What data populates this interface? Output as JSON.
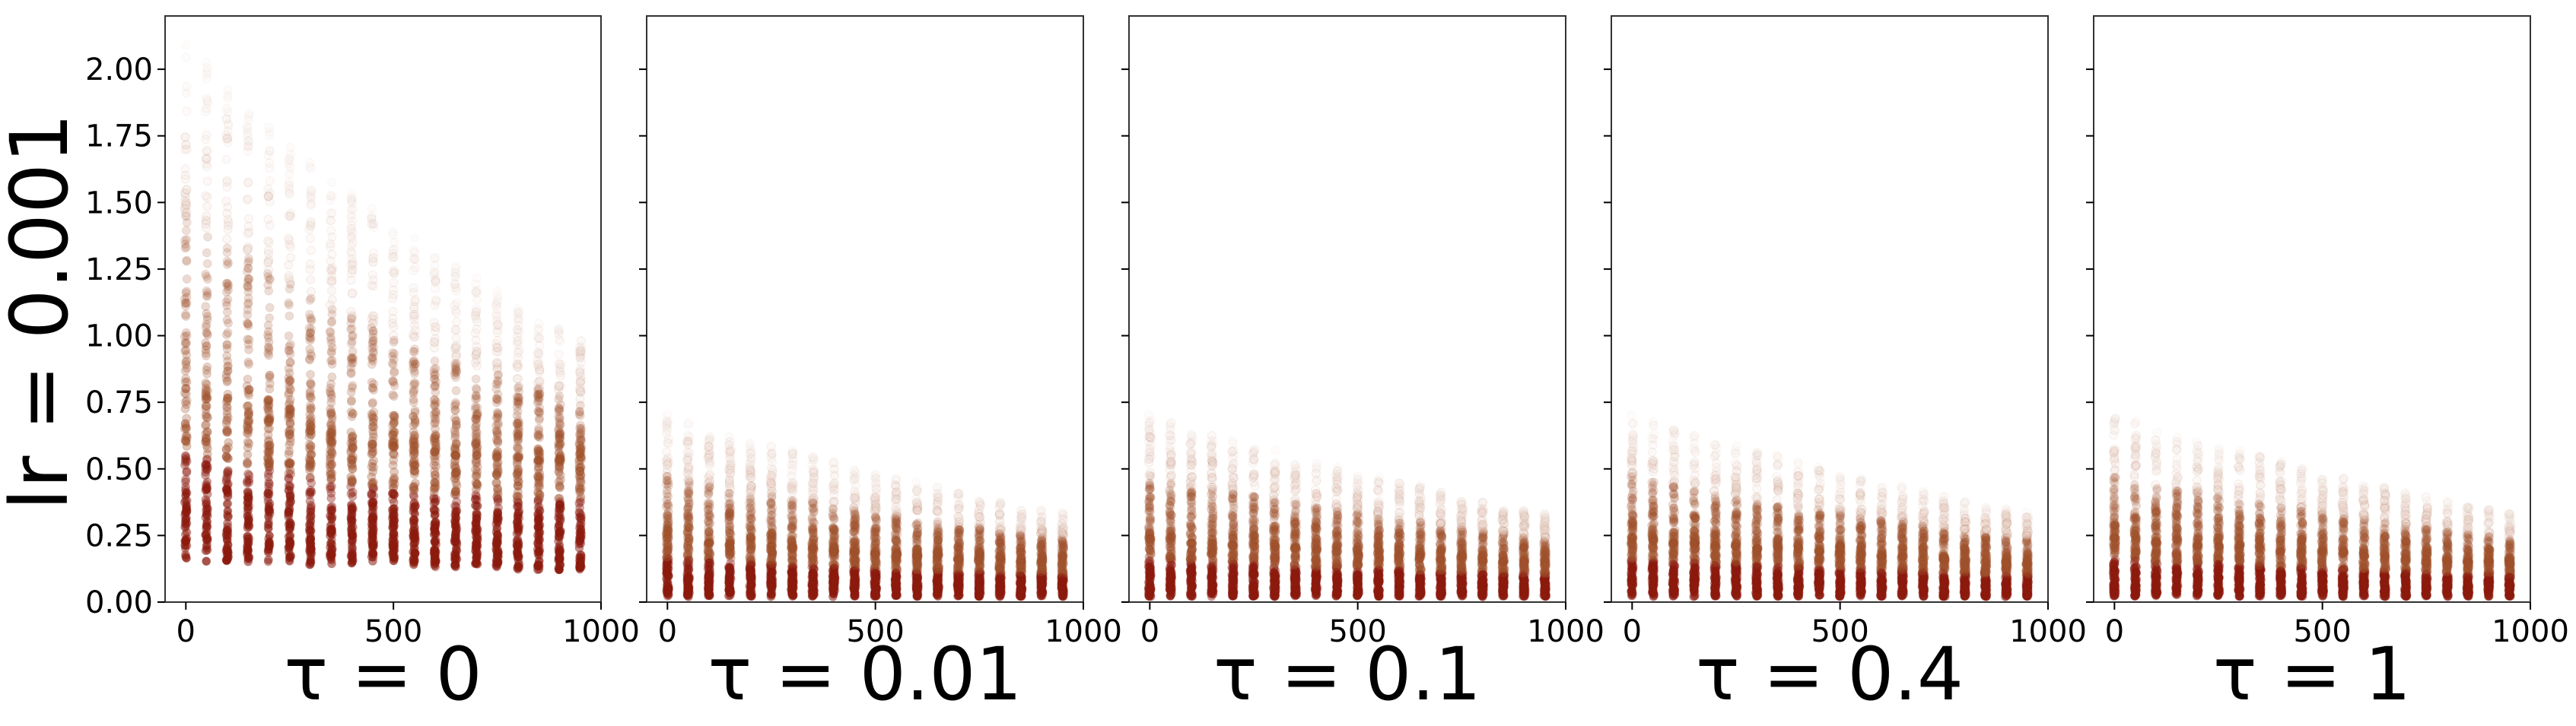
{
  "figure": {
    "row_label": "lr = 0.001"
  },
  "chart_data": [
    {
      "type": "scatter",
      "title": "",
      "xlabel": "τ = 0",
      "ylabel": "lr = 0.001",
      "xlim": [
        -50,
        1000
      ],
      "ylim": [
        0,
        2.2
      ],
      "xticks": [
        0,
        500,
        1000
      ],
      "yticks": [
        0.0,
        0.25,
        0.5,
        0.75,
        1.0,
        1.25,
        1.5,
        1.75,
        2.0
      ],
      "ytick_labels": [
        "0.00",
        "0.25",
        "0.50",
        "0.75",
        "1.00",
        "1.25",
        "1.50",
        "1.75",
        "2.00"
      ],
      "show_ytick_labels": true,
      "grid": false,
      "x": [
        0,
        50,
        100,
        150,
        200,
        250,
        300,
        350,
        400,
        450,
        500,
        550,
        600,
        650,
        700,
        750,
        800,
        850,
        900,
        950
      ],
      "y_min": [
        0.15,
        0.15,
        0.15,
        0.15,
        0.15,
        0.15,
        0.14,
        0.14,
        0.14,
        0.14,
        0.14,
        0.13,
        0.13,
        0.13,
        0.13,
        0.13,
        0.12,
        0.12,
        0.12,
        0.12
      ],
      "y_max": [
        2.1,
        2.04,
        1.96,
        1.89,
        1.81,
        1.74,
        1.67,
        1.6,
        1.54,
        1.48,
        1.42,
        1.37,
        1.32,
        1.27,
        1.22,
        1.17,
        1.12,
        1.08,
        1.04,
        1.0
      ],
      "dense_top": [
        0.8,
        0.76,
        0.73,
        0.7,
        0.68,
        0.66,
        0.64,
        0.62,
        0.6,
        0.59,
        0.58,
        0.57,
        0.56,
        0.55,
        0.55,
        0.54,
        0.54,
        0.53,
        0.53,
        0.52
      ],
      "colors": {
        "dense": "#8b1a0e",
        "mid": "#a0522d",
        "sparse": "#e8cfc3"
      }
    },
    {
      "type": "scatter",
      "title": "",
      "xlabel": "τ = 0.01",
      "ylabel": "",
      "xlim": [
        -50,
        1000
      ],
      "ylim": [
        0,
        2.2
      ],
      "xticks": [
        0,
        500,
        1000
      ],
      "show_ytick_labels": false,
      "grid": false,
      "x": [
        0,
        50,
        100,
        150,
        200,
        250,
        300,
        350,
        400,
        450,
        500,
        550,
        600,
        650,
        700,
        750,
        800,
        850,
        900,
        950
      ],
      "y_min": [
        0.02,
        0.02,
        0.02,
        0.02,
        0.02,
        0.02,
        0.02,
        0.02,
        0.02,
        0.02,
        0.02,
        0.02,
        0.02,
        0.02,
        0.02,
        0.02,
        0.02,
        0.02,
        0.02,
        0.02
      ],
      "y_max": [
        0.71,
        0.68,
        0.65,
        0.63,
        0.61,
        0.59,
        0.57,
        0.55,
        0.53,
        0.51,
        0.49,
        0.47,
        0.45,
        0.44,
        0.42,
        0.4,
        0.38,
        0.36,
        0.35,
        0.34
      ],
      "dense_top": [
        0.24,
        0.23,
        0.22,
        0.22,
        0.21,
        0.21,
        0.2,
        0.2,
        0.19,
        0.19,
        0.18,
        0.18,
        0.17,
        0.17,
        0.16,
        0.16,
        0.15,
        0.15,
        0.15,
        0.14
      ],
      "colors": {
        "dense": "#8b1a0e",
        "mid": "#a0522d",
        "sparse": "#e8cfc3"
      }
    },
    {
      "type": "scatter",
      "title": "",
      "xlabel": "τ = 0.1",
      "ylabel": "",
      "xlim": [
        -50,
        1000
      ],
      "ylim": [
        0,
        2.2
      ],
      "xticks": [
        0,
        500,
        1000
      ],
      "show_ytick_labels": false,
      "grid": false,
      "x": [
        0,
        50,
        100,
        150,
        200,
        250,
        300,
        350,
        400,
        450,
        500,
        550,
        600,
        650,
        700,
        750,
        800,
        850,
        900,
        950
      ],
      "y_min": [
        0.02,
        0.02,
        0.02,
        0.02,
        0.02,
        0.02,
        0.02,
        0.02,
        0.02,
        0.02,
        0.02,
        0.02,
        0.02,
        0.02,
        0.02,
        0.02,
        0.02,
        0.02,
        0.02,
        0.02
      ],
      "y_max": [
        0.71,
        0.68,
        0.65,
        0.63,
        0.61,
        0.59,
        0.57,
        0.55,
        0.53,
        0.51,
        0.49,
        0.47,
        0.45,
        0.44,
        0.42,
        0.4,
        0.38,
        0.36,
        0.35,
        0.34
      ],
      "dense_top": [
        0.24,
        0.23,
        0.22,
        0.22,
        0.21,
        0.21,
        0.2,
        0.2,
        0.19,
        0.19,
        0.18,
        0.18,
        0.17,
        0.17,
        0.16,
        0.16,
        0.15,
        0.15,
        0.15,
        0.14
      ],
      "colors": {
        "dense": "#8b1a0e",
        "mid": "#a0522d",
        "sparse": "#e8cfc3"
      }
    },
    {
      "type": "scatter",
      "title": "",
      "xlabel": "τ = 0.4",
      "ylabel": "",
      "xlim": [
        -50,
        1000
      ],
      "ylim": [
        0,
        2.2
      ],
      "xticks": [
        0,
        500,
        1000
      ],
      "show_ytick_labels": false,
      "grid": false,
      "x": [
        0,
        50,
        100,
        150,
        200,
        250,
        300,
        350,
        400,
        450,
        500,
        550,
        600,
        650,
        700,
        750,
        800,
        850,
        900,
        950
      ],
      "y_min": [
        0.02,
        0.02,
        0.02,
        0.02,
        0.02,
        0.02,
        0.02,
        0.02,
        0.02,
        0.02,
        0.02,
        0.02,
        0.02,
        0.02,
        0.02,
        0.02,
        0.02,
        0.02,
        0.02,
        0.02
      ],
      "y_max": [
        0.71,
        0.68,
        0.65,
        0.63,
        0.61,
        0.59,
        0.57,
        0.55,
        0.53,
        0.51,
        0.49,
        0.47,
        0.45,
        0.44,
        0.42,
        0.4,
        0.38,
        0.36,
        0.35,
        0.34
      ],
      "dense_top": [
        0.24,
        0.23,
        0.22,
        0.22,
        0.21,
        0.21,
        0.2,
        0.2,
        0.19,
        0.19,
        0.18,
        0.18,
        0.17,
        0.17,
        0.16,
        0.16,
        0.15,
        0.15,
        0.15,
        0.14
      ],
      "colors": {
        "dense": "#8b1a0e",
        "mid": "#a0522d",
        "sparse": "#e8cfc3"
      }
    },
    {
      "type": "scatter",
      "title": "",
      "xlabel": "τ = 1",
      "ylabel": "",
      "xlim": [
        -50,
        1000
      ],
      "ylim": [
        0,
        2.2
      ],
      "xticks": [
        0,
        500,
        1000
      ],
      "show_ytick_labels": false,
      "grid": false,
      "x": [
        0,
        50,
        100,
        150,
        200,
        250,
        300,
        350,
        400,
        450,
        500,
        550,
        600,
        650,
        700,
        750,
        800,
        850,
        900,
        950
      ],
      "y_min": [
        0.02,
        0.02,
        0.02,
        0.02,
        0.02,
        0.02,
        0.02,
        0.02,
        0.02,
        0.02,
        0.02,
        0.02,
        0.02,
        0.02,
        0.02,
        0.02,
        0.02,
        0.02,
        0.02,
        0.02
      ],
      "y_max": [
        0.71,
        0.68,
        0.65,
        0.63,
        0.61,
        0.59,
        0.57,
        0.55,
        0.53,
        0.51,
        0.49,
        0.47,
        0.45,
        0.44,
        0.42,
        0.4,
        0.38,
        0.36,
        0.35,
        0.34
      ],
      "dense_top": [
        0.24,
        0.23,
        0.22,
        0.22,
        0.21,
        0.21,
        0.2,
        0.2,
        0.19,
        0.19,
        0.18,
        0.18,
        0.17,
        0.17,
        0.16,
        0.16,
        0.15,
        0.15,
        0.15,
        0.14
      ],
      "colors": {
        "dense": "#8b1a0e",
        "mid": "#a0522d",
        "sparse": "#e8cfc3"
      }
    }
  ]
}
